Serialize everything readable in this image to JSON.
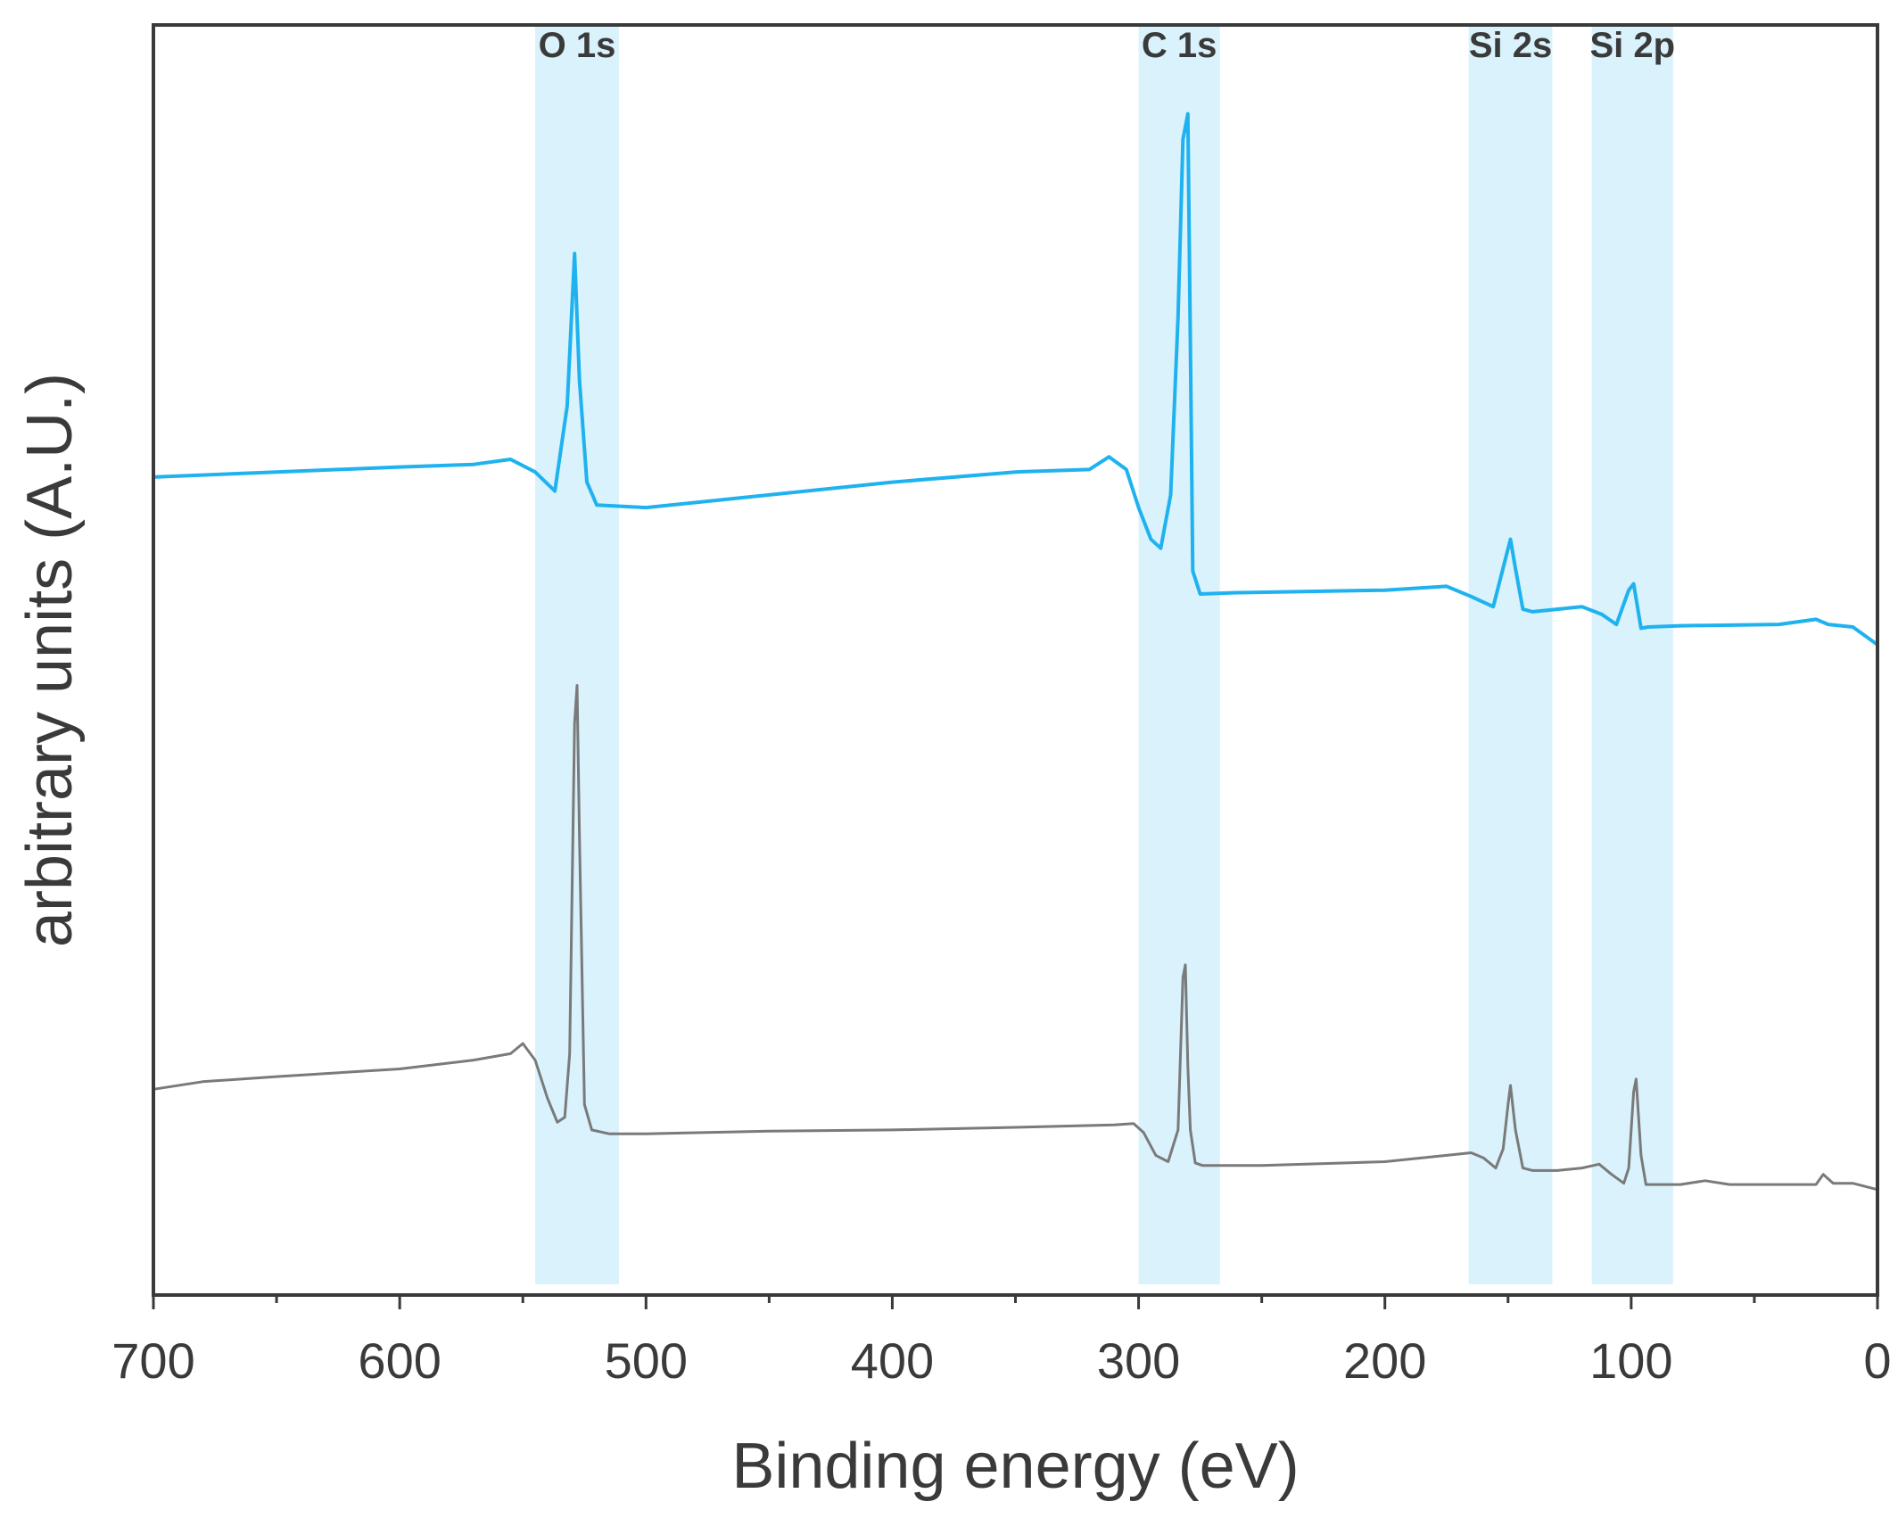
{
  "chart_data": {
    "type": "line",
    "title": "",
    "xlabel": "Binding energy (eV)",
    "ylabel": "arbitrary units (A.U.)",
    "xlim": [
      700,
      0
    ],
    "x_reversed": true,
    "ylim": [
      0,
      10
    ],
    "y_ticks_shown": false,
    "grid": false,
    "legend": "none",
    "xticks": [
      700,
      600,
      500,
      400,
      300,
      200,
      100,
      0
    ],
    "xtick_labels": [
      "700",
      "600",
      "500",
      "400",
      "300",
      "200",
      "100",
      "0"
    ],
    "highlight_color": "#d9f2fc",
    "regions": [
      {
        "label": "O 1s",
        "x_from": 545,
        "x_to": 511
      },
      {
        "label": "C 1s",
        "x_from": 300,
        "x_to": 267
      },
      {
        "label": "Si 2s",
        "x_from": 166,
        "x_to": 132
      },
      {
        "label": "Si 2p",
        "x_from": 116,
        "x_to": 83
      }
    ],
    "series": [
      {
        "color": "#1fb2ef",
        "x": [
          700,
          650,
          600,
          570,
          555,
          545,
          537,
          532,
          529,
          527,
          524,
          520,
          500,
          450,
          400,
          350,
          320,
          312,
          305,
          300,
          295,
          291,
          287,
          284,
          282,
          280,
          279,
          278,
          275,
          260,
          200,
          175,
          165,
          156,
          151,
          149,
          147,
          144,
          140,
          120,
          112,
          106,
          101,
          99,
          96,
          93,
          80,
          40,
          25,
          20,
          10,
          0
        ],
        "y": [
          6.44,
          6.48,
          6.52,
          6.54,
          6.58,
          6.48,
          6.33,
          7.0,
          8.2,
          7.2,
          6.4,
          6.22,
          6.2,
          6.3,
          6.4,
          6.48,
          6.5,
          6.6,
          6.5,
          6.2,
          5.95,
          5.88,
          6.3,
          7.7,
          9.1,
          9.3,
          7.5,
          5.7,
          5.52,
          5.53,
          5.55,
          5.58,
          5.5,
          5.42,
          5.8,
          5.95,
          5.72,
          5.4,
          5.38,
          5.42,
          5.36,
          5.28,
          5.55,
          5.6,
          5.25,
          5.26,
          5.27,
          5.28,
          5.32,
          5.28,
          5.26,
          5.12
        ]
      },
      {
        "color": "#7a7a7a",
        "x": [
          700,
          680,
          650,
          600,
          570,
          555,
          550,
          545,
          540,
          536,
          533,
          531,
          529,
          528,
          527,
          525,
          522,
          515,
          500,
          450,
          400,
          350,
          310,
          302,
          298,
          293,
          288,
          284,
          282,
          281,
          280,
          279,
          277,
          274,
          250,
          200,
          175,
          165,
          160,
          155,
          152,
          150,
          149,
          147,
          144,
          140,
          130,
          120,
          113,
          108,
          103,
          101,
          99,
          98,
          96,
          94,
          90,
          80,
          70,
          60,
          40,
          25,
          22,
          18,
          10,
          0
        ],
        "y": [
          1.62,
          1.68,
          1.72,
          1.78,
          1.85,
          1.9,
          1.98,
          1.85,
          1.55,
          1.36,
          1.4,
          1.9,
          4.5,
          4.8,
          3.6,
          1.5,
          1.3,
          1.27,
          1.27,
          1.29,
          1.3,
          1.32,
          1.34,
          1.35,
          1.28,
          1.1,
          1.05,
          1.3,
          2.5,
          2.6,
          1.8,
          1.3,
          1.04,
          1.02,
          1.02,
          1.05,
          1.1,
          1.12,
          1.08,
          1.0,
          1.15,
          1.5,
          1.65,
          1.3,
          1.0,
          0.98,
          0.98,
          1.0,
          1.03,
          0.95,
          0.88,
          1.0,
          1.6,
          1.7,
          1.1,
          0.87,
          0.87,
          0.87,
          0.9,
          0.87,
          0.87,
          0.87,
          0.95,
          0.88,
          0.88,
          0.83
        ]
      }
    ]
  }
}
